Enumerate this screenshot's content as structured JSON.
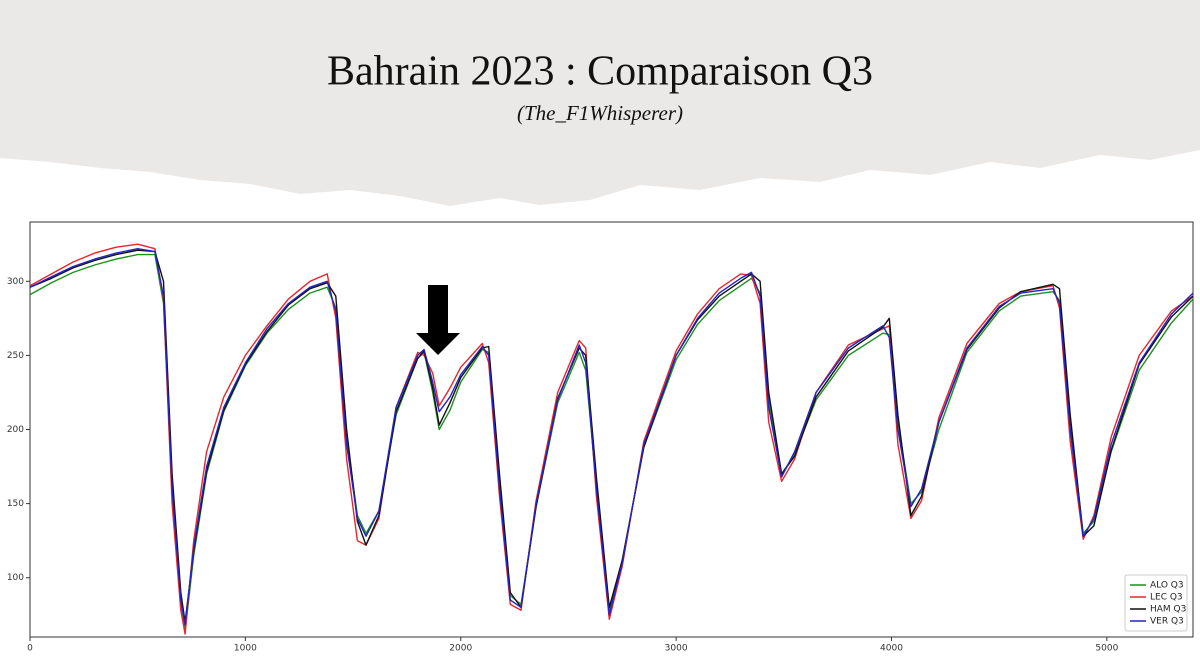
{
  "chart_data": {
    "type": "line",
    "title": "Bahrain 2023 : Comparaison Q3",
    "subtitle": "(The_F1Whisperer)",
    "x": [
      0,
      100,
      200,
      300,
      400,
      500,
      580,
      620,
      660,
      700,
      720,
      760,
      820,
      900,
      1000,
      1100,
      1200,
      1300,
      1380,
      1420,
      1470,
      1520,
      1560,
      1620,
      1700,
      1800,
      1830,
      1870,
      1900,
      1950,
      2000,
      2100,
      2130,
      2180,
      2230,
      2280,
      2350,
      2450,
      2550,
      2580,
      2630,
      2690,
      2750,
      2850,
      3000,
      3100,
      3200,
      3300,
      3350,
      3390,
      3430,
      3490,
      3550,
      3650,
      3800,
      3960,
      3990,
      4030,
      4090,
      4140,
      4220,
      4350,
      4500,
      4600,
      4750,
      4780,
      4830,
      4890,
      4940,
      5020,
      5150,
      5300,
      5400
    ],
    "series": [
      {
        "name": "ALO Q3",
        "color": "#1f8f1f",
        "values": [
          291,
          299,
          306,
          311,
          315,
          318,
          318,
          285,
          160,
          80,
          64,
          115,
          170,
          212,
          243,
          265,
          281,
          292,
          296,
          282,
          195,
          142,
          130,
          145,
          210,
          248,
          252,
          225,
          200,
          213,
          232,
          254,
          252,
          165,
          88,
          82,
          148,
          218,
          252,
          240,
          162,
          78,
          112,
          188,
          247,
          271,
          287,
          297,
          302,
          292,
          220,
          170,
          183,
          220,
          250,
          265,
          264,
          205,
          150,
          158,
          200,
          252,
          280,
          290,
          293,
          287,
          205,
          130,
          138,
          185,
          240,
          272,
          288
        ]
      },
      {
        "name": "LEC Q3",
        "color": "#e8262a",
        "values": [
          297,
          305,
          313,
          319,
          323,
          325,
          322,
          288,
          150,
          78,
          62,
          125,
          185,
          222,
          250,
          270,
          288,
          300,
          305,
          275,
          180,
          125,
          122,
          140,
          215,
          252,
          250,
          238,
          216,
          228,
          242,
          258,
          245,
          155,
          82,
          78,
          152,
          225,
          260,
          255,
          155,
          72,
          108,
          192,
          253,
          278,
          295,
          305,
          304,
          285,
          205,
          165,
          180,
          225,
          257,
          268,
          270,
          190,
          140,
          152,
          208,
          258,
          285,
          293,
          297,
          282,
          192,
          126,
          142,
          195,
          250,
          280,
          290
        ]
      },
      {
        "name": "HAM Q3",
        "color": "#111111",
        "values": [
          296,
          302,
          309,
          314,
          318,
          321,
          320,
          300,
          170,
          90,
          70,
          118,
          172,
          213,
          244,
          266,
          284,
          295,
          299,
          290,
          200,
          138,
          122,
          142,
          212,
          248,
          253,
          228,
          203,
          218,
          235,
          255,
          256,
          170,
          90,
          80,
          148,
          221,
          255,
          250,
          168,
          80,
          112,
          188,
          250,
          274,
          290,
          300,
          305,
          300,
          225,
          170,
          182,
          222,
          253,
          269,
          275,
          210,
          142,
          155,
          205,
          254,
          282,
          293,
          298,
          295,
          210,
          128,
          135,
          186,
          244,
          276,
          290
        ]
      },
      {
        "name": "VER Q3",
        "color": "#2323c8",
        "values": [
          296,
          303,
          310,
          315,
          319,
          322,
          320,
          290,
          160,
          85,
          68,
          120,
          175,
          215,
          245,
          268,
          285,
          296,
          300,
          280,
          190,
          140,
          128,
          145,
          215,
          250,
          254,
          232,
          212,
          222,
          237,
          256,
          250,
          160,
          85,
          80,
          150,
          220,
          257,
          245,
          160,
          75,
          110,
          190,
          250,
          275,
          292,
          302,
          306,
          290,
          215,
          168,
          185,
          225,
          255,
          270,
          262,
          200,
          148,
          160,
          205,
          255,
          283,
          292,
          295,
          285,
          200,
          128,
          140,
          190,
          245,
          278,
          292
        ]
      }
    ],
    "xlim": [
      0,
      5400
    ],
    "ylim": [
      60,
      340
    ],
    "xticks": [
      0,
      1000,
      2000,
      3000,
      4000,
      5000
    ],
    "yticks": [
      100,
      150,
      200,
      250,
      300
    ],
    "legend": "lower right"
  }
}
